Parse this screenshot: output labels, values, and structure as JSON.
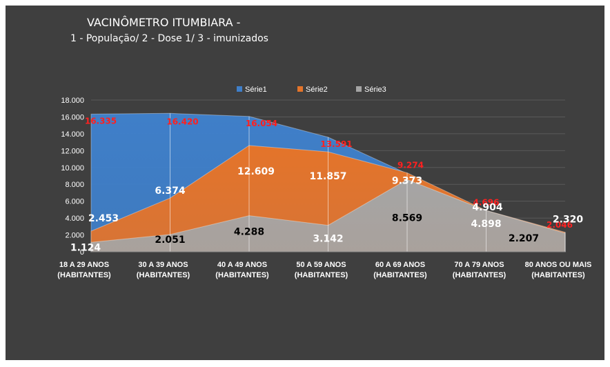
{
  "chart_data": {
    "type": "area",
    "title": "VACINÔMETRO ITUMBIARA -",
    "subtitle": "1 - População/ 2 - Dose 1/ 3 - imunizados",
    "categories": [
      [
        "18 A 29 ANOS",
        "(HABITANTES)"
      ],
      [
        "30 A 39 ANOS",
        "(HABITANTES)"
      ],
      [
        "40 A 49 ANOS",
        "(HABITANTES)"
      ],
      [
        "50 A 59 ANOS",
        "(HABITANTES)"
      ],
      [
        "60 A 69 ANOS",
        "(HABITANTES)"
      ],
      [
        "70 A 79 ANOS",
        "(HABITANTES)"
      ],
      [
        "80 ANOS OU MAIS",
        "(HABITANTES)"
      ]
    ],
    "series": [
      {
        "name": "Série1",
        "color": "#3f7fc9",
        "values": [
          16335,
          16420,
          16054,
          13591,
          9274,
          4696,
          2046
        ],
        "labels": [
          "16.335",
          "16.420",
          "16.054",
          "13.591",
          "9.274",
          "4.696",
          "2.046"
        ]
      },
      {
        "name": "Série2",
        "color": "#e4742a",
        "values": [
          2453,
          6374,
          12609,
          11857,
          9373,
          4904,
          2320
        ],
        "labels": [
          "2.453",
          "6.374",
          "12.609",
          "11.857",
          "9.373",
          "4.904",
          "2.320"
        ]
      },
      {
        "name": "Série3",
        "color": "#a5a5a5",
        "values": [
          1124,
          2051,
          4288,
          3142,
          8569,
          4898,
          2207
        ],
        "labels": [
          "1.124",
          "2.051",
          "4.288",
          "3.142",
          "8.569",
          "4.898",
          "2.207"
        ]
      }
    ],
    "ylim": [
      0,
      18000
    ],
    "yticks": [
      0,
      2000,
      4000,
      6000,
      8000,
      10000,
      12000,
      14000,
      16000,
      18000
    ],
    "ytick_labels": [
      "0",
      "2.000",
      "4.000",
      "6.000",
      "8.000",
      "10.000",
      "12.000",
      "14.000",
      "16.000",
      "18.000"
    ],
    "legend": "top",
    "grid": true
  }
}
